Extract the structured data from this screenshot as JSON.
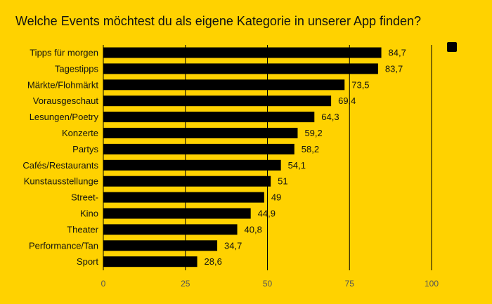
{
  "chart_data": {
    "type": "bar",
    "orientation": "horizontal",
    "title": "Welche Events möchtest du als eigene Kategorie in unserer App finden?",
    "categories": [
      "Tipps für morgen",
      "Tagestipps",
      "Märkte/Flohmärkt",
      "Vorausgeschaut",
      "Lesungen/Poetry",
      "Konzerte",
      "Partys",
      "Cafés/Restaurants",
      "Kunstausstellunge",
      "Street-",
      "Kino",
      "Theater",
      "Performance/Tan",
      "Sport"
    ],
    "series": [
      {
        "values": [
          84.7,
          83.7,
          73.5,
          69.4,
          64.3,
          59.2,
          58.2,
          54.1,
          51,
          49,
          44.9,
          40.8,
          34.7,
          28.6
        ],
        "labels": [
          "84,7",
          "83,7",
          "73,5",
          "69,4",
          "64,3",
          "59,2",
          "58,2",
          "54,1",
          "51",
          "49",
          "44,9",
          "40,8",
          "34,7",
          "28,6"
        ]
      }
    ],
    "xlim": [
      0,
      100
    ],
    "x_ticks": [
      0,
      25,
      50,
      75,
      100
    ],
    "grid": true,
    "legend": "top-right",
    "colors": {
      "background": "#FFD200",
      "bar": "#000000",
      "grid": "#000000",
      "text": "#111111",
      "tick": "#555555"
    }
  }
}
